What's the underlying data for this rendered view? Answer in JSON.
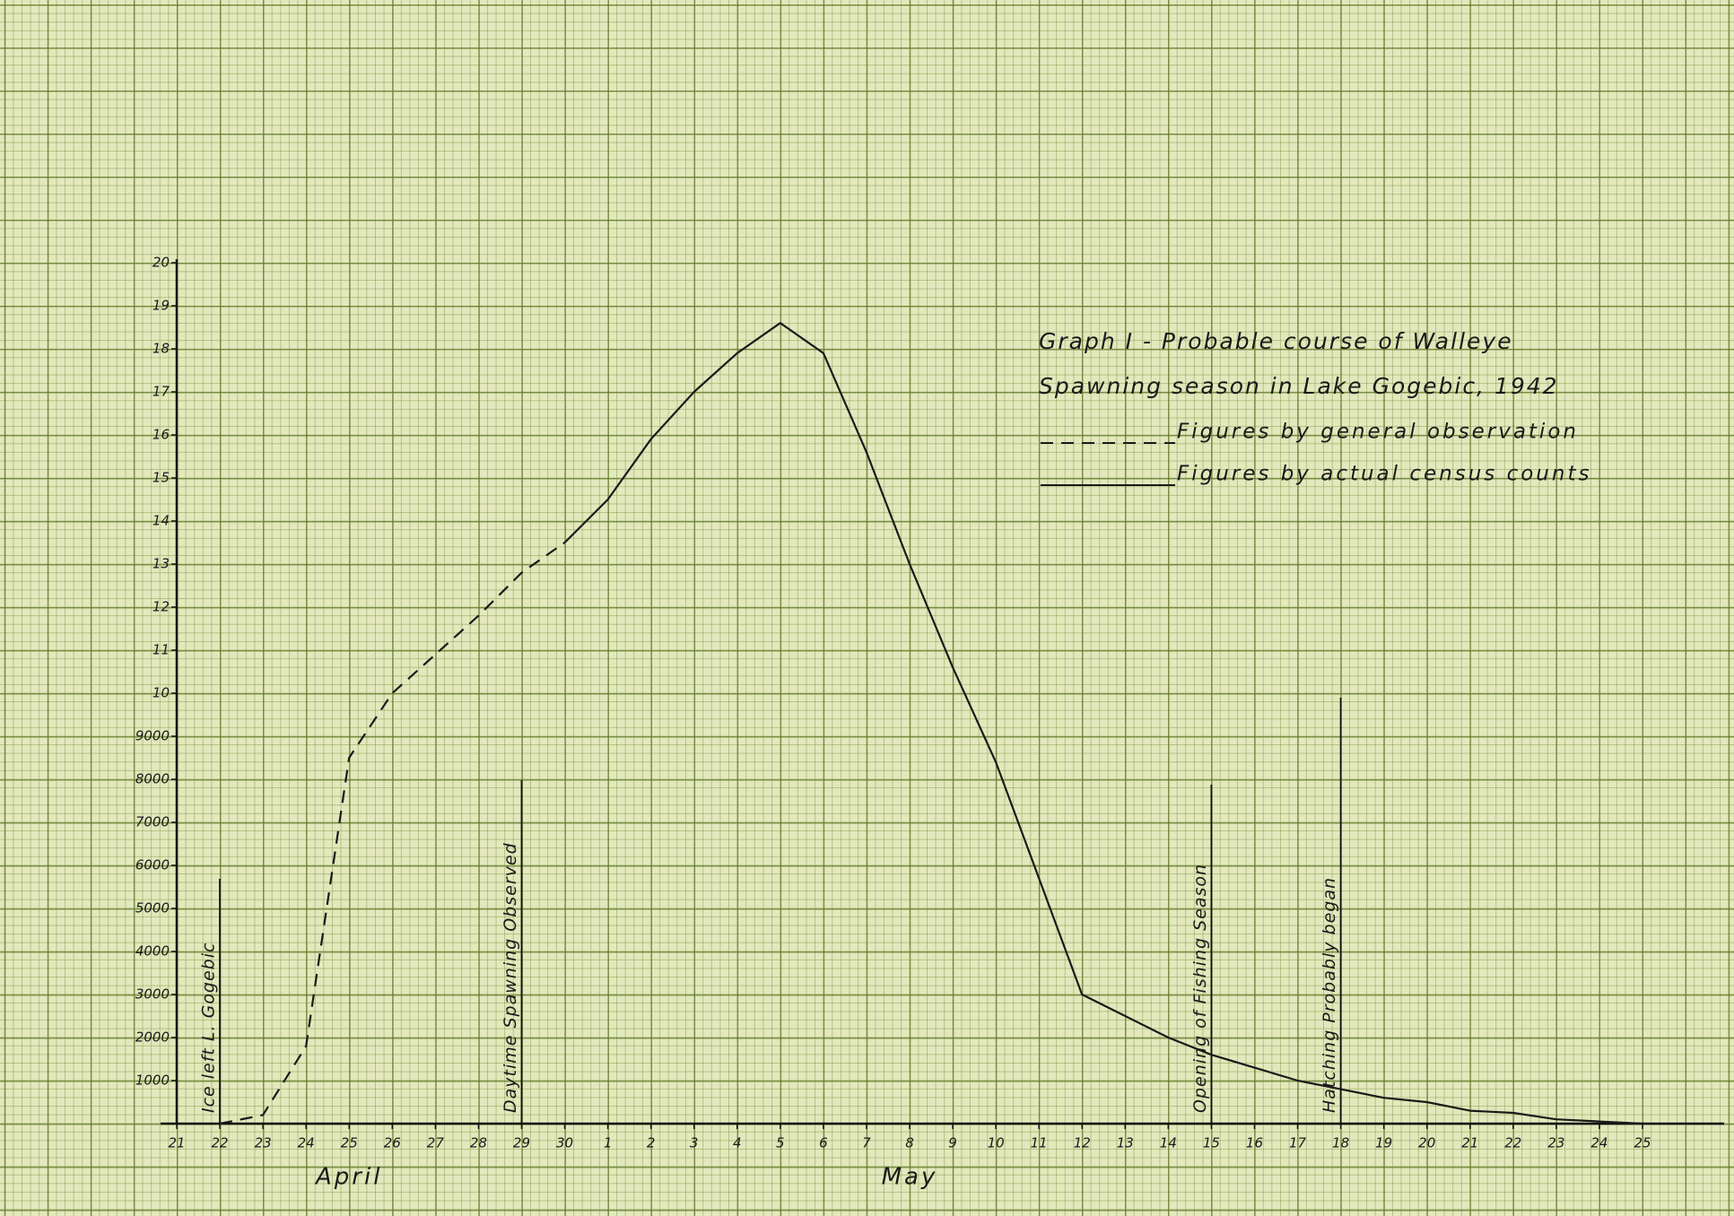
{
  "chart_data": {
    "type": "line",
    "title": [
      "Graph I - Probable course of Walleye",
      "Spawning season in Lake Gogebic, 1942"
    ],
    "categories": [
      "21",
      "22",
      "23",
      "24",
      "25",
      "26",
      "27",
      "28",
      "29",
      "30",
      "1",
      "2",
      "3",
      "4",
      "5",
      "6",
      "7",
      "8",
      "9",
      "10",
      "11",
      "12",
      "13",
      "14",
      "15",
      "16",
      "17",
      "18",
      "19",
      "20",
      "21",
      "22",
      "23",
      "24",
      "25"
    ],
    "x_group_labels": [
      "April",
      "May"
    ],
    "series": [
      {
        "name": "Figures by general observation",
        "color": "#1a1a1a",
        "dash": true,
        "values": [
          null,
          0,
          200,
          1800,
          8500,
          10000,
          10900,
          11800,
          12800,
          13500,
          null,
          null,
          null,
          null,
          null,
          null,
          null,
          null,
          null,
          null,
          null,
          null,
          null,
          null,
          null,
          null,
          null,
          null,
          null,
          null,
          null,
          null,
          null,
          null,
          null
        ]
      },
      {
        "name": "Figures by actual census counts",
        "color": "#1a1a1a",
        "dash": false,
        "values": [
          null,
          null,
          null,
          null,
          null,
          null,
          null,
          null,
          null,
          13500,
          14500,
          15900,
          17000,
          17900,
          18600,
          17900,
          15600,
          13000,
          10600,
          8400,
          5700,
          3000,
          2500,
          2000,
          1600,
          1300,
          1000,
          800,
          600,
          500,
          300,
          250,
          100,
          50,
          0
        ]
      }
    ],
    "annotations": [
      "Ice left L. Gogebic",
      "Daytime Spawning Observed",
      "Opening of Fishing Season",
      "Hatching Probably began"
    ],
    "ylim": [
      0,
      20000
    ],
    "yticks": [
      1000,
      2000,
      3000,
      4000,
      5000,
      6000,
      7000,
      8000,
      9000,
      {
        "value": 10000,
        "label": "10"
      },
      {
        "value": 11000,
        "label": "11"
      },
      {
        "value": 12000,
        "label": "12"
      },
      {
        "value": 13000,
        "label": "13"
      },
      {
        "value": 14000,
        "label": "14"
      },
      {
        "value": 15000,
        "label": "15"
      },
      {
        "value": 16000,
        "label": "16"
      },
      {
        "value": 17000,
        "label": "17"
      },
      {
        "value": 18000,
        "label": "18"
      },
      {
        "value": 19000,
        "label": "19"
      },
      {
        "value": 20000,
        "label": "20"
      }
    ],
    "grid": true
  }
}
